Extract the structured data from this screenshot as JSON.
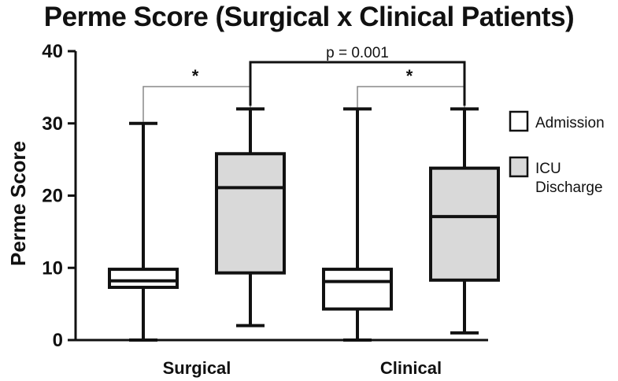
{
  "chart_data": {
    "type": "box",
    "title": "Perme Score (Surgical x Clinical Patients)",
    "xlabel": "",
    "ylabel": "Perme Score",
    "ylim": [
      0,
      40
    ],
    "yticks": [
      0,
      10,
      20,
      30,
      40
    ],
    "categories": [
      "Surgical",
      "Clinical"
    ],
    "series": [
      {
        "name": "Admission",
        "color": "#ffffff",
        "boxes": [
          {
            "min": 0,
            "q1": 7.3,
            "median": 8.2,
            "q3": 9.8,
            "max": 30
          },
          {
            "min": 0,
            "q1": 4.3,
            "median": 8.1,
            "q3": 9.8,
            "max": 32
          }
        ]
      },
      {
        "name": "ICU Discharge",
        "color": "#d9d9d9",
        "boxes": [
          {
            "min": 2,
            "q1": 9.3,
            "median": 21.1,
            "q3": 25.8,
            "max": 32
          },
          {
            "min": 1,
            "q1": 8.3,
            "median": 17.1,
            "q3": 23.8,
            "max": 32
          }
        ]
      }
    ],
    "legend": {
      "position": "right",
      "entries": [
        "Admission",
        "ICU Discharge"
      ]
    },
    "annotations": [
      {
        "label": "*",
        "between": "Surgical Admission vs Surgical ICU Discharge"
      },
      {
        "label": "p = 0.001",
        "between": "Surgical ICU Discharge vs Clinical ICU Discharge"
      },
      {
        "label": "*",
        "between": "Clinical Admission vs Clinical ICU Discharge"
      }
    ],
    "grid": false
  }
}
